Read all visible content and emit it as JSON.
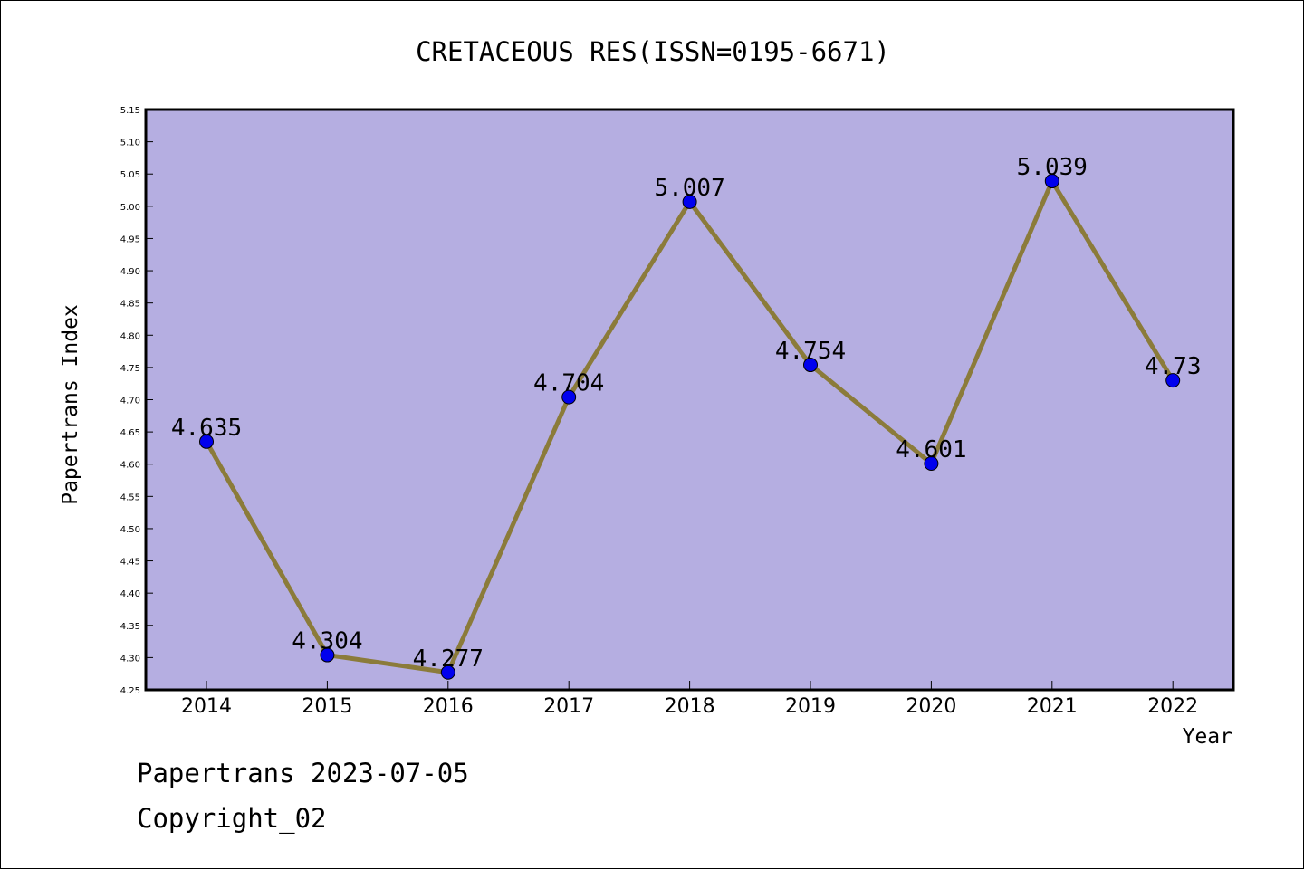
{
  "chart_data": {
    "type": "line",
    "title": "CRETACEOUS RES(ISSN=0195-6671)",
    "xlabel": "Year",
    "ylabel": "Papertrans Index",
    "categories": [
      "2014",
      "2015",
      "2016",
      "2017",
      "2018",
      "2019",
      "2020",
      "2021",
      "2022"
    ],
    "values": [
      4.635,
      4.304,
      4.277,
      4.704,
      5.007,
      4.754,
      4.601,
      5.039,
      4.73
    ],
    "data_labels": [
      "4.635",
      "4.304",
      "4.277",
      "4.704",
      "5.007",
      "4.754",
      "4.601",
      "5.039",
      "4.73"
    ],
    "ylim": [
      4.25,
      5.15
    ],
    "yticks": [
      "4.25",
      "4.30",
      "4.35",
      "4.40",
      "4.45",
      "4.50",
      "4.55",
      "4.60",
      "4.65",
      "4.70",
      "4.75",
      "4.80",
      "4.85",
      "4.90",
      "4.95",
      "5.00",
      "5.05",
      "5.10",
      "5.15"
    ],
    "grid": false,
    "colors": {
      "plot_background": "#b5aee1",
      "line": "#8b7b3a",
      "marker": "#0000ee"
    }
  },
  "footer": {
    "line1": "Papertrans 2023-07-05",
    "line2": "Copyright_02"
  }
}
